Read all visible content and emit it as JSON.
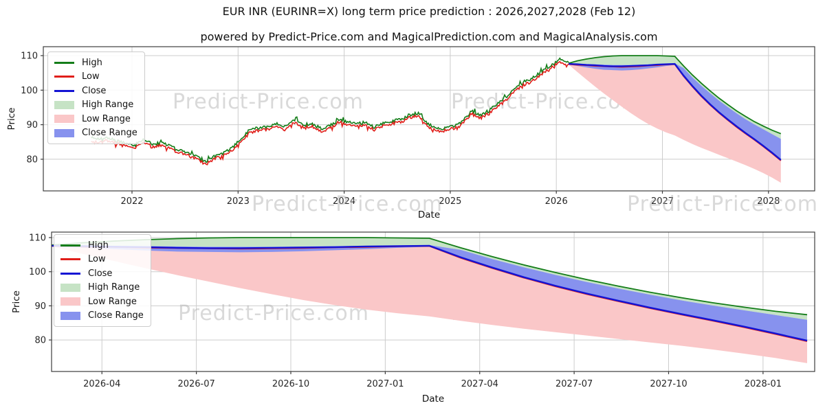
{
  "page": {
    "title": "EUR INR (EURINR=X) long term price prediction : 2026,2027,2028 (Feb 12)",
    "subtitle": "powered by Predict-Price.com and MagicalPrediction.com and MagicalAnalysis.com",
    "watermark_text": "Predict-Price.com"
  },
  "colors": {
    "high_line": "#147d19",
    "low_line": "#e01e19",
    "close_line": "#1313d4",
    "high_range_fill": "#c6e3c5",
    "low_range_fill": "#fac7c8",
    "close_range_fill": "#8792ee",
    "grid": "#cccccc",
    "spine": "#3c3c3c",
    "tick_text": "#262626",
    "watermark": "#aaaaaa"
  },
  "chart_data": [
    {
      "type": "line",
      "xlabel": "Date",
      "ylabel": "Price",
      "grid": true,
      "legend_position": "upper left",
      "legend": [
        "High",
        "Low",
        "Close",
        "High Range",
        "Low Range",
        "Close Range"
      ],
      "x_ticks": [
        "2022",
        "2023",
        "2024",
        "2025",
        "2026",
        "2027",
        "2028"
      ],
      "y_ticks": [
        80,
        90,
        100,
        110
      ],
      "ylim": [
        70.8,
        112.6
      ],
      "historical": {
        "start_month": "2021-08",
        "close": [
          85.6,
          85.2,
          85.9,
          84.8,
          84.3,
          83.8,
          85.3,
          83.8,
          84.7,
          83.2,
          82.3,
          81.3,
          80.3,
          78.9,
          80.6,
          81.6,
          83.2,
          85.8,
          88.1,
          88.7,
          89.2,
          89.8,
          88.9,
          91.0,
          89.4,
          89.9,
          88.4,
          89.4,
          91.1,
          90.4,
          89.8,
          90.3,
          88.9,
          90.1,
          90.6,
          91.2,
          92.4,
          93.1,
          89.9,
          88.4,
          88.7,
          89.2,
          90.6,
          93.6,
          92.3,
          93.6,
          95.9,
          97.8,
          100.4,
          101.9,
          103.4,
          105.1,
          106.6,
          108.4,
          107.8
        ]
      },
      "prediction": {
        "months": [
          "2026-02",
          "2026-03",
          "2026-04",
          "2026-05",
          "2026-06",
          "2026-07",
          "2026-08",
          "2026-09",
          "2026-10",
          "2026-11",
          "2026-12",
          "2027-01",
          "2027-02",
          "2027-03",
          "2027-04",
          "2027-05",
          "2027-06",
          "2027-07",
          "2027-08",
          "2027-09",
          "2027-10",
          "2027-11",
          "2027-12",
          "2028-01",
          "2028-02"
        ],
        "high": [
          107.8,
          108.5,
          109.0,
          109.4,
          109.7,
          109.9,
          110.0,
          110.0,
          110.0,
          110.0,
          110.0,
          109.9,
          109.8,
          107.0,
          104.4,
          102.0,
          99.8,
          97.7,
          95.8,
          94.0,
          92.4,
          90.9,
          89.6,
          88.4,
          87.4
        ],
        "low": [
          107.5,
          107.3,
          107.2,
          107.0,
          106.9,
          106.8,
          106.7,
          106.8,
          106.9,
          107.1,
          107.2,
          107.4,
          107.5,
          104.0,
          101.0,
          98.2,
          95.7,
          93.4,
          91.3,
          89.3,
          87.4,
          85.6,
          83.7,
          81.7,
          79.6
        ],
        "close": [
          107.6,
          107.5,
          107.3,
          107.2,
          107.0,
          106.9,
          106.9,
          107.0,
          107.1,
          107.2,
          107.4,
          107.5,
          107.6,
          104.2,
          101.2,
          98.4,
          95.9,
          93.6,
          91.5,
          89.5,
          87.6,
          85.8,
          83.9,
          81.9,
          79.8
        ],
        "close_range_upper": [
          107.8,
          107.7,
          107.6,
          107.5,
          107.4,
          107.3,
          107.3,
          107.3,
          107.4,
          107.5,
          107.6,
          107.7,
          107.8,
          106.4,
          103.7,
          101.3,
          99.1,
          97.0,
          95.1,
          93.3,
          91.6,
          90.1,
          88.7,
          87.3,
          85.9
        ],
        "close_range_lower": [
          107.4,
          107.0,
          106.6,
          106.2,
          105.9,
          105.8,
          105.7,
          105.8,
          106.0,
          106.3,
          106.6,
          107.0,
          107.3,
          104.2,
          101.2,
          98.4,
          95.9,
          93.6,
          91.5,
          89.5,
          87.6,
          85.8,
          83.9,
          81.9,
          79.8
        ],
        "low_range_lower": [
          107.4,
          105.2,
          103.1,
          101.0,
          99.0,
          97.1,
          95.2,
          93.4,
          91.7,
          90.2,
          88.9,
          87.8,
          86.9,
          85.6,
          84.4,
          83.3,
          82.3,
          81.3,
          80.3,
          79.3,
          78.3,
          77.2,
          76.0,
          74.7,
          73.2
        ]
      }
    },
    {
      "type": "line",
      "xlabel": "Date",
      "ylabel": "Price",
      "grid": true,
      "legend_position": "upper left",
      "legend": [
        "High",
        "Low",
        "Close",
        "High Range",
        "Low Range",
        "Close Range"
      ],
      "x_ticks": [
        "2026-04",
        "2026-07",
        "2026-10",
        "2027-01",
        "2027-04",
        "2027-07",
        "2027-10",
        "2028-01"
      ],
      "y_ticks": [
        80,
        90,
        100,
        110
      ],
      "ylim": [
        70.8,
        111.6
      ],
      "prediction": {
        "months": [
          "2026-02",
          "2026-03",
          "2026-04",
          "2026-05",
          "2026-06",
          "2026-07",
          "2026-08",
          "2026-09",
          "2026-10",
          "2026-11",
          "2026-12",
          "2027-01",
          "2027-02",
          "2027-03",
          "2027-04",
          "2027-05",
          "2027-06",
          "2027-07",
          "2027-08",
          "2027-09",
          "2027-10",
          "2027-11",
          "2027-12",
          "2028-01",
          "2028-02"
        ],
        "high": [
          107.8,
          108.5,
          109.0,
          109.4,
          109.7,
          109.9,
          110.0,
          110.0,
          110.0,
          110.0,
          110.0,
          109.9,
          109.8,
          107.0,
          104.4,
          102.0,
          99.8,
          97.7,
          95.8,
          94.0,
          92.4,
          90.9,
          89.6,
          88.4,
          87.4
        ],
        "low": [
          107.5,
          107.3,
          107.2,
          107.0,
          106.9,
          106.8,
          106.7,
          106.8,
          106.9,
          107.1,
          107.2,
          107.4,
          107.5,
          104.0,
          101.0,
          98.2,
          95.7,
          93.4,
          91.3,
          89.3,
          87.4,
          85.6,
          83.7,
          81.7,
          79.6
        ],
        "close": [
          107.6,
          107.5,
          107.3,
          107.2,
          107.0,
          106.9,
          106.9,
          107.0,
          107.1,
          107.2,
          107.4,
          107.5,
          107.6,
          104.2,
          101.2,
          98.4,
          95.9,
          93.6,
          91.5,
          89.5,
          87.6,
          85.8,
          83.9,
          81.9,
          79.8
        ],
        "close_range_upper": [
          107.8,
          107.7,
          107.6,
          107.5,
          107.4,
          107.3,
          107.3,
          107.3,
          107.4,
          107.5,
          107.6,
          107.7,
          107.8,
          106.4,
          103.7,
          101.3,
          99.1,
          97.0,
          95.1,
          93.3,
          91.6,
          90.1,
          88.7,
          87.3,
          85.9
        ],
        "close_range_lower": [
          107.4,
          107.0,
          106.6,
          106.2,
          105.9,
          105.8,
          105.7,
          105.8,
          106.0,
          106.3,
          106.6,
          107.0,
          107.3,
          104.2,
          101.2,
          98.4,
          95.9,
          93.6,
          91.5,
          89.5,
          87.6,
          85.8,
          83.9,
          81.9,
          79.8
        ],
        "low_range_lower": [
          107.4,
          105.2,
          103.1,
          101.0,
          99.0,
          97.1,
          95.2,
          93.4,
          91.7,
          90.2,
          88.9,
          87.8,
          86.9,
          85.6,
          84.4,
          83.3,
          82.3,
          81.3,
          80.3,
          79.3,
          78.3,
          77.2,
          76.0,
          74.7,
          73.2
        ]
      }
    }
  ]
}
